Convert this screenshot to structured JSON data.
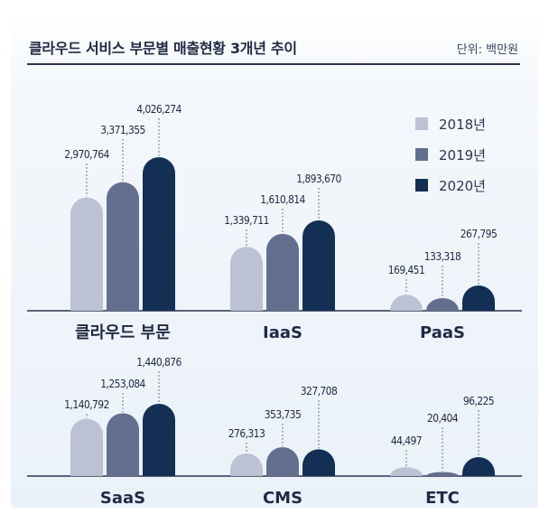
{
  "header": {
    "title": "클라우드 서비스 부문별 매출현황 3개년 추이",
    "unit": "단위: 백만원"
  },
  "colors": {
    "s2018": "#bcc1d3",
    "s2019": "#646f8f",
    "s2020": "#132f53"
  },
  "chart_data": {
    "type": "bar",
    "title": "클라우드 서비스 부문별 매출현황 3개년 추이",
    "unit_label": "단위: 백만원",
    "legend_position": "top-right",
    "series_names": [
      "2018년",
      "2019년",
      "2020년"
    ],
    "groups": [
      {
        "label": "클라우드 부문",
        "values": [
          2970764,
          3371355,
          4026274
        ],
        "value_labels": [
          "2,970,764",
          "3,371,355",
          "4,026,274"
        ]
      },
      {
        "label": "IaaS",
        "values": [
          1339711,
          1610814,
          1893670
        ],
        "value_labels": [
          "1,339,711",
          "1,610,814",
          "1,893,670"
        ]
      },
      {
        "label": "PaaS",
        "values": [
          169451,
          133318,
          267795
        ],
        "value_labels": [
          "169,451",
          "133,318",
          "267,795"
        ]
      },
      {
        "label": "SaaS",
        "values": [
          1140792,
          1253084,
          1440876
        ],
        "value_labels": [
          "1,140,792",
          "1,253,084",
          "1,440,876"
        ]
      },
      {
        "label": "CMS",
        "values": [
          276313,
          353735,
          327708
        ],
        "value_labels": [
          "276,313",
          "353,735",
          "327,708"
        ]
      },
      {
        "label": "ETC",
        "values": [
          44497,
          20404,
          96225
        ],
        "value_labels": [
          "44,497",
          "20,404",
          "96,225"
        ]
      }
    ]
  }
}
